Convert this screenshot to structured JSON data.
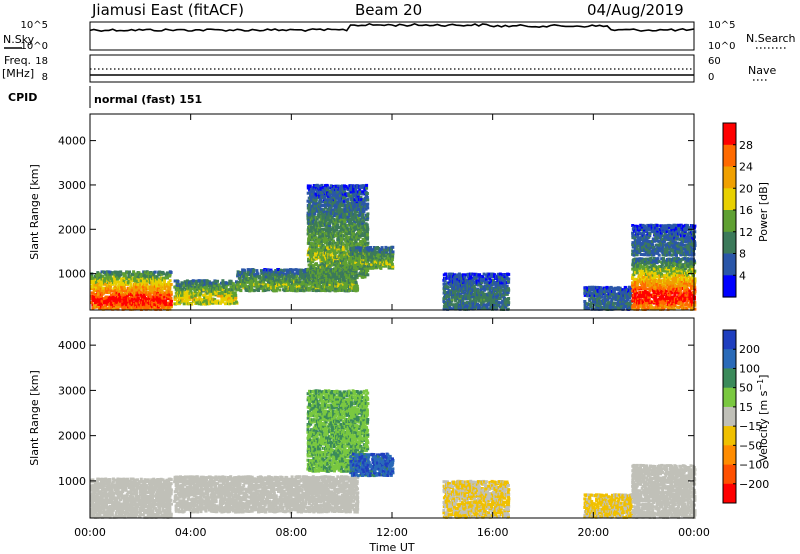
{
  "header": {
    "radar": "Jiamusi East (fitACF)",
    "beam": "Beam 20",
    "date": "04/Aug/2019"
  },
  "panels": {
    "nsky_label": "N.Sky",
    "nsky_ticks": [
      "10^5",
      "10^0"
    ],
    "nsearch_label": "N.Search",
    "nsearch_ticks": [
      "10^5",
      "10^0"
    ],
    "freq_label": "Freq.",
    "freq_unit": "[MHz]",
    "freq_ticks": [
      "18",
      "8"
    ],
    "nave_label": "Nave",
    "nave_ticks": [
      "60",
      "0"
    ],
    "cpid_label": "CPID",
    "cpid_text": "normal (fast) 151"
  },
  "colors": {
    "power_scale": [
      "#0000ff",
      "#2a56a8",
      "#3c7a5a",
      "#5fa032",
      "#e8d000",
      "#f0a000",
      "#ff6a00",
      "#ff0000"
    ],
    "velocity_scale": [
      "#1f3fbf",
      "#2a6ab8",
      "#3b8a5a",
      "#7ac840",
      "#c0c0b8",
      "#f0c000",
      "#ff8c00",
      "#ff5000",
      "#ff0000"
    ]
  },
  "chart_data": [
    {
      "type": "heatmap",
      "name": "power",
      "ylabel": "Slant Range [km]",
      "y_ticks": [
        1000,
        2000,
        3000,
        4000
      ],
      "ylim": [
        180,
        4600
      ],
      "x_ticks": [
        "00:00",
        "04:00",
        "08:00",
        "12:00",
        "16:00",
        "20:00",
        "00:00"
      ],
      "xlim_hours": [
        0,
        24
      ],
      "colorbar_label": "Power [dB]",
      "colorbar_ticks": [
        "4",
        "8",
        "12",
        "16",
        "20",
        "24",
        "28"
      ],
      "colorbar_range": [
        0,
        30
      ],
      "regions": [
        {
          "t0": 0.0,
          "t1": 3.2,
          "r0": 180,
          "r1": 1050,
          "peak": 29,
          "edge": 8
        },
        {
          "t0": 3.3,
          "t1": 5.8,
          "r0": 300,
          "r1": 850,
          "peak": 18,
          "edge": 6
        },
        {
          "t0": 5.8,
          "t1": 10.6,
          "r0": 600,
          "r1": 1100,
          "peak": 14,
          "edge": 5
        },
        {
          "t0": 8.6,
          "t1": 11.0,
          "r0": 900,
          "r1": 3000,
          "peak": 14,
          "edge": 4
        },
        {
          "t0": 10.3,
          "t1": 12.0,
          "r0": 1100,
          "r1": 1600,
          "peak": 14,
          "edge": 6
        },
        {
          "t0": 14.0,
          "t1": 16.6,
          "r0": 180,
          "r1": 1000,
          "peak": 9,
          "edge": 4
        },
        {
          "t0": 19.6,
          "t1": 21.5,
          "r0": 180,
          "r1": 700,
          "peak": 8,
          "edge": 4
        },
        {
          "t0": 21.5,
          "t1": 24.0,
          "r0": 180,
          "r1": 1350,
          "peak": 29,
          "edge": 6
        },
        {
          "t0": 21.5,
          "t1": 24.0,
          "r0": 1400,
          "r1": 2100,
          "peak": 8,
          "edge": 4
        }
      ]
    },
    {
      "type": "heatmap",
      "name": "velocity",
      "ylabel": "Slant Range [km]",
      "y_ticks": [
        1000,
        2000,
        3000,
        4000
      ],
      "ylim": [
        180,
        4600
      ],
      "x_ticks": [
        "00:00",
        "04:00",
        "08:00",
        "12:00",
        "16:00",
        "20:00",
        "00:00"
      ],
      "xlim_hours": [
        0,
        24
      ],
      "xlabel": "Time UT",
      "colorbar_label": "Velocity [m s^-1]",
      "colorbar_ticks": [
        "200",
        "100",
        "50",
        "15",
        "−15",
        "−50",
        "−100",
        "−200"
      ],
      "colorbar_range": [
        -250,
        250
      ],
      "regions": [
        {
          "t0": 0.0,
          "t1": 3.2,
          "r0": 180,
          "r1": 1050,
          "v": 0,
          "spread": 20
        },
        {
          "t0": 3.3,
          "t1": 10.6,
          "r0": 300,
          "r1": 1100,
          "v": 0,
          "spread": 15
        },
        {
          "t0": 8.6,
          "t1": 11.0,
          "r0": 1200,
          "r1": 3000,
          "v": 70,
          "spread": 40
        },
        {
          "t0": 10.3,
          "t1": 12.0,
          "r0": 1100,
          "r1": 1600,
          "v": 180,
          "spread": 50
        },
        {
          "t0": 14.0,
          "t1": 16.6,
          "r0": 180,
          "r1": 1000,
          "v": -30,
          "spread": 30
        },
        {
          "t0": 19.6,
          "t1": 21.5,
          "r0": 180,
          "r1": 700,
          "v": -40,
          "spread": 30
        },
        {
          "t0": 21.5,
          "t1": 24.0,
          "r0": 180,
          "r1": 1350,
          "v": 0,
          "spread": 25
        }
      ]
    }
  ]
}
